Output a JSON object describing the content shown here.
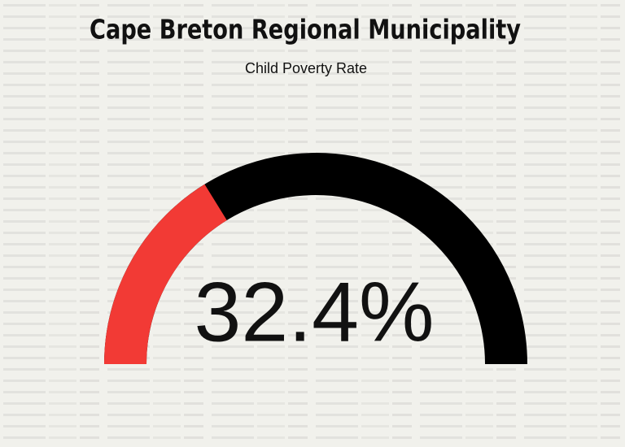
{
  "chart_data": {
    "type": "gauge",
    "title": "Cape Breton Regional Municipality",
    "subtitle": "Child Poverty Rate",
    "values": [
      32.4
    ],
    "value_labels": [
      "32.4%"
    ],
    "ylim": [
      0,
      100
    ],
    "color": "#f23a35",
    "track_color": "#000000"
  }
}
